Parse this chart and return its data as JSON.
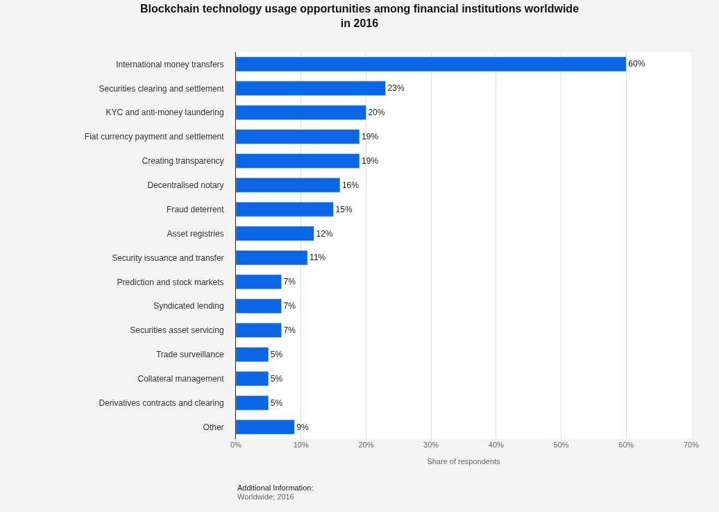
{
  "chart_data": {
    "type": "bar",
    "orientation": "horizontal",
    "title": "Blockchain technology usage opportunities among financial institutions worldwide in 2016",
    "xlabel": "Share of respondents",
    "categories": [
      "International money transfers",
      "Securities clearing and settlement",
      "KYC and anti-money laundering",
      "Fiat currency payment and settlement",
      "Creating transparency",
      "Decentralised notary",
      "Fraud deterrent",
      "Asset registries",
      "Security issuance and transfer",
      "Prediction and stock markets",
      "Syndicated lending",
      "Securities asset servicing",
      "Trade surveillance",
      "Collateral management",
      "Derivatives contracts and clearing",
      "Other"
    ],
    "values": [
      60,
      23,
      20,
      19,
      19,
      16,
      15,
      12,
      11,
      7,
      7,
      7,
      5,
      5,
      5,
      9
    ],
    "value_labels": [
      "60%",
      "23%",
      "20%",
      "19%",
      "19%",
      "16%",
      "15%",
      "12%",
      "11%",
      "7%",
      "7%",
      "7%",
      "5%",
      "5%",
      "5%",
      "9%"
    ],
    "color": "#0a66e4",
    "xlim": [
      0,
      70
    ],
    "xticks": [
      {
        "value": 0,
        "label": "0%"
      },
      {
        "value": 10,
        "label": "10%"
      },
      {
        "value": 20,
        "label": "20%"
      },
      {
        "value": 30,
        "label": "30%"
      },
      {
        "value": 40,
        "label": "40%"
      },
      {
        "value": 50,
        "label": "50%"
      },
      {
        "value": 60,
        "label": "60%"
      },
      {
        "value": 70,
        "label": "70%"
      }
    ],
    "grid": "x",
    "annotations": [
      "Additional Information:",
      "Worldwide; 2016"
    ]
  }
}
